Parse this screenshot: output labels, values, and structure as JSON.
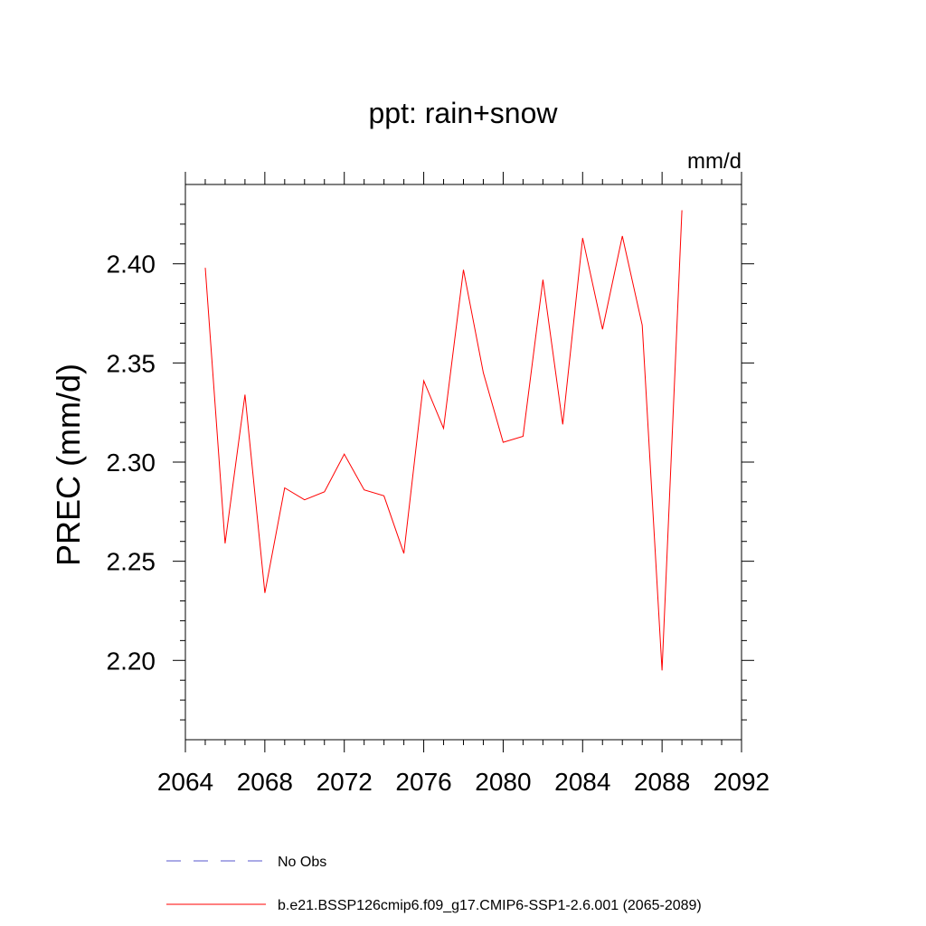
{
  "chart_data": {
    "type": "line",
    "title": "ppt: rain+snow",
    "units": "mm/d",
    "ylabel": "PREC  (mm/d)",
    "xlabel": "",
    "xlim": [
      2064,
      2092
    ],
    "ylim": [
      2.16,
      2.44
    ],
    "xticks": [
      2064,
      2068,
      2072,
      2076,
      2080,
      2084,
      2088,
      2092
    ],
    "xtick_labels": [
      "2064",
      "2068",
      "2072",
      "2076",
      "2080",
      "2084",
      "2088",
      "2092"
    ],
    "yticks": [
      2.2,
      2.25,
      2.3,
      2.35,
      2.4
    ],
    "ytick_labels": [
      "2.20",
      "2.25",
      "2.30",
      "2.35",
      "2.40"
    ],
    "grid": false,
    "legend_position": "bottom",
    "series": [
      {
        "name": "b.e21.BSSP126cmip6.f09_g17.CMIP6-SSP1-2.6.001 (2065-2089)",
        "color": "#ff0000",
        "style": "solid",
        "x": [
          2065,
          2066,
          2067,
          2068,
          2069,
          2070,
          2071,
          2072,
          2073,
          2074,
          2075,
          2076,
          2077,
          2078,
          2079,
          2080,
          2081,
          2082,
          2083,
          2084,
          2085,
          2086,
          2087,
          2088,
          2089
        ],
        "y": [
          2.398,
          2.259,
          2.334,
          2.234,
          2.287,
          2.281,
          2.285,
          2.304,
          2.286,
          2.283,
          2.254,
          2.341,
          2.317,
          2.397,
          2.345,
          2.31,
          2.313,
          2.392,
          2.319,
          2.413,
          2.367,
          2.414,
          2.369,
          2.195,
          2.427
        ]
      }
    ],
    "legend": [
      {
        "label": "No Obs",
        "color": "#5555cc",
        "style": "dashed"
      },
      {
        "label": "b.e21.BSSP126cmip6.f09_g17.CMIP6-SSP1-2.6.001 (2065-2089)",
        "color": "#ff0000",
        "style": "solid"
      }
    ]
  }
}
